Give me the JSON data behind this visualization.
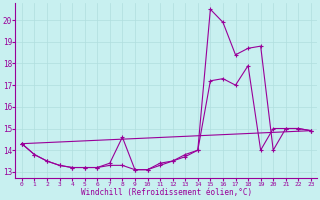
{
  "xlabel": "Windchill (Refroidissement éolien,°C)",
  "ylabel": "",
  "background_color": "#c8f0f0",
  "line_color": "#990099",
  "grid_color": "#b0dede",
  "xlim": [
    -0.5,
    23.5
  ],
  "ylim": [
    12.7,
    20.8
  ],
  "xticks": [
    0,
    1,
    2,
    3,
    4,
    5,
    6,
    7,
    8,
    9,
    10,
    11,
    12,
    13,
    14,
    15,
    16,
    17,
    18,
    19,
    20,
    21,
    22,
    23
  ],
  "yticks": [
    13,
    14,
    15,
    16,
    17,
    18,
    19,
    20
  ],
  "series": [
    {
      "x": [
        0,
        1,
        2,
        3,
        4,
        5,
        6,
        7,
        8,
        9,
        10,
        11,
        12,
        13,
        14,
        15,
        16,
        17,
        18,
        19,
        20,
        21,
        22,
        23
      ],
      "y": [
        14.3,
        13.8,
        13.5,
        13.3,
        13.2,
        13.2,
        13.2,
        13.4,
        14.6,
        13.1,
        13.1,
        13.4,
        13.5,
        13.8,
        14.0,
        17.2,
        17.3,
        17.0,
        17.9,
        14.0,
        15.0,
        15.0,
        15.0,
        14.9
      ]
    },
    {
      "x": [
        0,
        1,
        2,
        3,
        4,
        5,
        6,
        7,
        8,
        9,
        10,
        11,
        12,
        13,
        14,
        15,
        16,
        17,
        18,
        19,
        20,
        21,
        22,
        23
      ],
      "y": [
        14.3,
        13.8,
        13.5,
        13.3,
        13.2,
        13.2,
        13.2,
        13.3,
        13.3,
        13.1,
        13.1,
        13.3,
        13.5,
        13.7,
        14.0,
        20.5,
        19.9,
        18.4,
        18.7,
        18.8,
        14.0,
        15.0,
        15.0,
        14.9
      ]
    },
    {
      "x": [
        0,
        23
      ],
      "y": [
        14.3,
        14.9
      ]
    }
  ]
}
